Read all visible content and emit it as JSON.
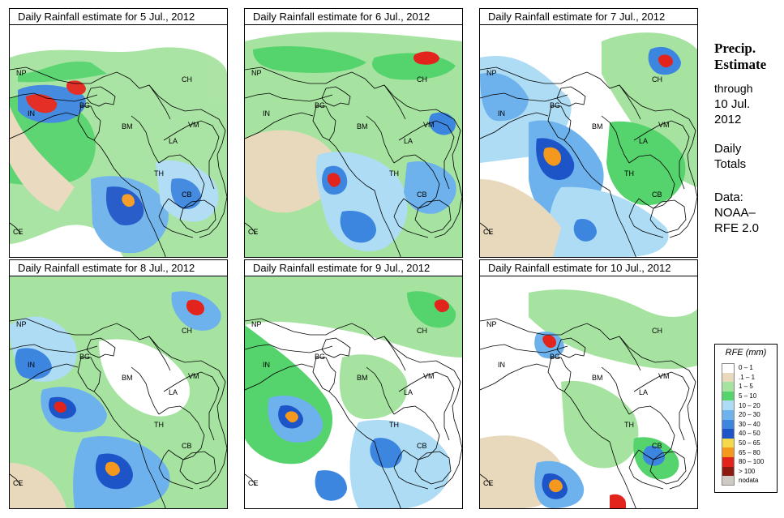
{
  "panels": [
    {
      "title": "Daily Rainfall estimate for  5 Jul., 2012"
    },
    {
      "title": "Daily Rainfall estimate for  6 Jul., 2012"
    },
    {
      "title": "Daily Rainfall estimate for  7 Jul., 2012"
    },
    {
      "title": "Daily Rainfall estimate for  8 Jul., 2012"
    },
    {
      "title": "Daily Rainfall estimate for  9 Jul., 2012"
    },
    {
      "title": "Daily Rainfall estimate for  10 Jul., 2012"
    }
  ],
  "map_labels": {
    "np": "NP",
    "ch": "CH",
    "bg": "BG",
    "in": "IN",
    "bm": "BM",
    "vm": "VM",
    "la": "LA",
    "th": "TH",
    "cb": "CB",
    "ce": "CE"
  },
  "side": {
    "title_line1": "Precip.",
    "title_line2": "Estimate",
    "through": "through",
    "date_line1": "10 Jul.",
    "date_line2": "2012",
    "daily_line1": "Daily",
    "daily_line2": "Totals",
    "data_line1": "Data:",
    "data_line2": "NOAA–",
    "data_line3": "RFE 2.0"
  },
  "legend": {
    "title": "RFE (mm)",
    "items": [
      {
        "label": "0 – 1",
        "color": "#ffffff"
      },
      {
        "label": ".1 – 1",
        "color": "#e8d9bd"
      },
      {
        "label": "1 – 5",
        "color": "#a6e3a0"
      },
      {
        "label": "5 – 10",
        "color": "#55d36c"
      },
      {
        "label": "10 – 20",
        "color": "#aedcf4"
      },
      {
        "label": "20 – 30",
        "color": "#6db2ec"
      },
      {
        "label": "30 – 40",
        "color": "#3c86e0"
      },
      {
        "label": "40 – 50",
        "color": "#1d55c8"
      },
      {
        "label": "50 – 65",
        "color": "#f5d94a"
      },
      {
        "label": "65 – 80",
        "color": "#f5991e"
      },
      {
        "label": "80 – 100",
        "color": "#e3241c"
      },
      {
        "label": "> 100",
        "color": "#8c1a10"
      },
      {
        "label": "nodata",
        "color": "#cfcac4"
      }
    ]
  }
}
